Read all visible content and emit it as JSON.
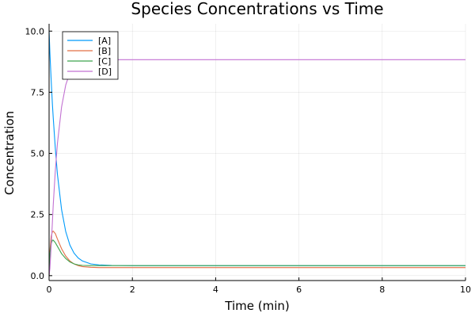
{
  "chart_data": {
    "type": "line",
    "title": "Species Concentrations vs Time",
    "xlabel": "Time (min)",
    "ylabel": "Concentration",
    "xlim": [
      0,
      10
    ],
    "ylim": [
      -0.2,
      10.3
    ],
    "x_ticks": [
      {
        "value": 0,
        "label": "0"
      },
      {
        "value": 2,
        "label": "2"
      },
      {
        "value": 4,
        "label": "4"
      },
      {
        "value": 6,
        "label": "6"
      },
      {
        "value": 8,
        "label": "8"
      },
      {
        "value": 10,
        "label": "10"
      }
    ],
    "y_ticks": [
      {
        "value": 0,
        "label": "0.0"
      },
      {
        "value": 2.5,
        "label": "2.5"
      },
      {
        "value": 5,
        "label": "5.0"
      },
      {
        "value": 7.5,
        "label": "7.5"
      },
      {
        "value": 10,
        "label": "10.0"
      }
    ],
    "grid": true,
    "legend_position": "top-left",
    "x": [
      0,
      0.02,
      0.05,
      0.08,
      0.1,
      0.15,
      0.2,
      0.3,
      0.4,
      0.5,
      0.6,
      0.7,
      0.8,
      1.0,
      1.2,
      1.5,
      2,
      3,
      4,
      5,
      6,
      7,
      8,
      9,
      10
    ],
    "series": [
      {
        "name": "[A]",
        "color": "#009AFA",
        "values": [
          10,
          9.1,
          8.0,
          7.0,
          6.45,
          5.2,
          4.15,
          2.7,
          1.8,
          1.25,
          0.92,
          0.72,
          0.6,
          0.48,
          0.44,
          0.42,
          0.41,
          0.41,
          0.41,
          0.41,
          0.41,
          0.41,
          0.41,
          0.41,
          0.41
        ]
      },
      {
        "name": "[B]",
        "color": "#E26F46",
        "values": [
          0,
          1.0,
          1.6,
          1.8,
          1.82,
          1.72,
          1.5,
          1.1,
          0.8,
          0.6,
          0.48,
          0.41,
          0.37,
          0.34,
          0.33,
          0.33,
          0.33,
          0.33,
          0.33,
          0.33,
          0.33,
          0.33,
          0.33,
          0.33,
          0.33
        ]
      },
      {
        "name": "[C]",
        "color": "#3DA44D",
        "values": [
          0,
          0.9,
          1.3,
          1.45,
          1.45,
          1.35,
          1.2,
          0.9,
          0.7,
          0.56,
          0.48,
          0.44,
          0.42,
          0.41,
          0.41,
          0.41,
          0.41,
          0.41,
          0.41,
          0.41,
          0.41,
          0.41,
          0.41,
          0.41,
          0.41
        ]
      },
      {
        "name": "[D]",
        "color": "#C271D2",
        "values": [
          0,
          0.3,
          1.2,
          2.2,
          2.9,
          4.3,
          5.4,
          6.9,
          7.8,
          8.3,
          8.55,
          8.68,
          8.75,
          8.8,
          8.82,
          8.83,
          8.83,
          8.83,
          8.83,
          8.83,
          8.83,
          8.83,
          8.83,
          8.83,
          8.83
        ]
      }
    ]
  }
}
